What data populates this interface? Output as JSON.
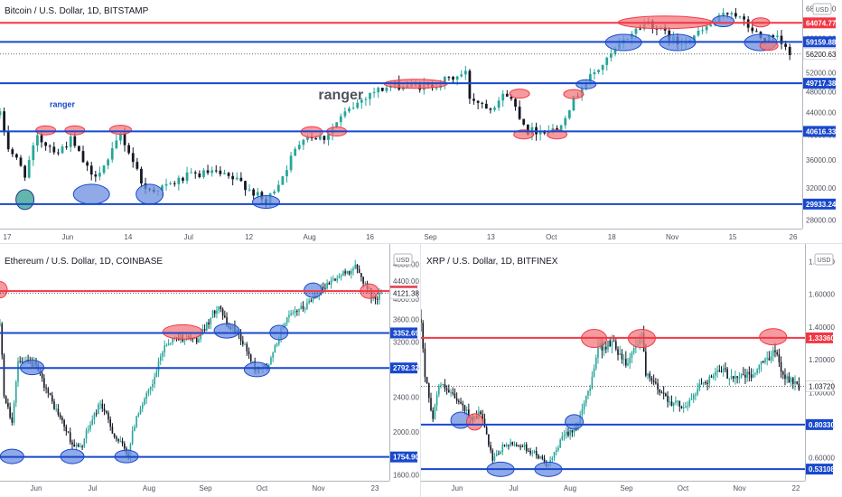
{
  "colors": {
    "up": "#26a69a",
    "down": "#131722",
    "resistance": "#f23645",
    "support": "#1848cc",
    "ellipse_red_fill": "#f2787e",
    "ellipse_blue_fill": "#6b8ee0",
    "ellipse_teal_fill": "#2f9e8f",
    "last_price_bg": "#ffffff"
  },
  "chart_data": [
    {
      "id": "btc",
      "type": "candlestick",
      "title": "Bitcoin / U.S. Dollar, 1D, BITSTAMP",
      "currency_label": "USD",
      "yaxis_scale": "log",
      "ylim": [
        27000,
        70000
      ],
      "y_ticks": [
        68000,
        64000,
        60000,
        56000,
        52000,
        48000,
        44000,
        40000,
        36000,
        32000,
        28000
      ],
      "x_ticks": [
        "17",
        "Jun",
        "14",
        "Jul",
        "12",
        "Aug",
        "16",
        "Sep",
        "13",
        "Oct",
        "18",
        "Nov",
        "15",
        "26"
      ],
      "x_range": [
        "2021-05-17",
        "2021-11-26"
      ],
      "levels": [
        {
          "value": 64074.77,
          "label": "64074.77",
          "kind": "resistance"
        },
        {
          "value": 59159.88,
          "label": "59159.88",
          "kind": "support"
        },
        {
          "value": 49717.38,
          "label": "49717.38",
          "kind": "support"
        },
        {
          "value": 40616.33,
          "label": "40616.33",
          "kind": "support"
        },
        {
          "value": 29933.24,
          "label": "29933.24",
          "kind": "support"
        }
      ],
      "last_price": {
        "value": 56200.63,
        "label": "56200.63"
      },
      "annotations": [
        {
          "text": "ranger",
          "date": "2021-08-07",
          "value": 46500,
          "size": "large"
        },
        {
          "text": "ranger",
          "date": "2021-06-01",
          "value": 45000,
          "size": "small"
        }
      ],
      "highlights": [
        {
          "date": "2021-05-23",
          "value": 30500,
          "rw": 10,
          "rh": 11,
          "kind": "teal"
        },
        {
          "date": "2021-06-08",
          "value": 31200,
          "rw": 20,
          "rh": 11,
          "kind": "support"
        },
        {
          "date": "2021-06-22",
          "value": 31200,
          "rw": 15,
          "rh": 11,
          "kind": "support"
        },
        {
          "date": "2021-07-20",
          "value": 30200,
          "rw": 15,
          "rh": 7,
          "kind": "support"
        },
        {
          "date": "2021-05-28",
          "value": 40800,
          "rw": 11,
          "rh": 5,
          "kind": "resistance"
        },
        {
          "date": "2021-06-04",
          "value": 40800,
          "rw": 11,
          "rh": 5,
          "kind": "resistance"
        },
        {
          "date": "2021-06-15",
          "value": 40900,
          "rw": 12,
          "rh": 5,
          "kind": "resistance"
        },
        {
          "date": "2021-07-31",
          "value": 40500,
          "rw": 12,
          "rh": 6,
          "kind": "resistance"
        },
        {
          "date": "2021-08-06",
          "value": 40600,
          "rw": 11,
          "rh": 5,
          "kind": "resistance"
        },
        {
          "date": "2021-08-25",
          "value": 49600,
          "rw": 35,
          "rh": 5,
          "kind": "resistance"
        },
        {
          "date": "2021-09-19",
          "value": 47600,
          "rw": 11,
          "rh": 5,
          "kind": "resistance"
        },
        {
          "date": "2021-09-20",
          "value": 40100,
          "rw": 11,
          "rh": 5,
          "kind": "resistance"
        },
        {
          "date": "2021-09-28",
          "value": 40100,
          "rw": 11,
          "rh": 5,
          "kind": "resistance"
        },
        {
          "date": "2021-10-02",
          "value": 47500,
          "rw": 11,
          "rh": 5,
          "kind": "resistance"
        },
        {
          "date": "2021-10-05",
          "value": 49500,
          "rw": 11,
          "rh": 5,
          "kind": "support"
        },
        {
          "date": "2021-10-24",
          "value": 64200,
          "rw": 52,
          "rh": 7,
          "kind": "resistance"
        },
        {
          "date": "2021-10-14",
          "value": 59000,
          "rw": 20,
          "rh": 9,
          "kind": "support"
        },
        {
          "date": "2021-10-27",
          "value": 59000,
          "rw": 20,
          "rh": 9,
          "kind": "support"
        },
        {
          "date": "2021-11-07",
          "value": 64500,
          "rw": 12,
          "rh": 6,
          "kind": "support"
        },
        {
          "date": "2021-11-16",
          "value": 59000,
          "rw": 18,
          "rh": 9,
          "kind": "support"
        },
        {
          "date": "2021-11-16",
          "value": 64200,
          "rw": 10,
          "rh": 5,
          "kind": "resistance"
        },
        {
          "date": "2021-11-18",
          "value": 58200,
          "rw": 10,
          "rh": 5,
          "kind": "resistance"
        }
      ],
      "close_path": [
        [
          "2021-05-17",
          43500
        ],
        [
          "2021-05-19",
          38000
        ],
        [
          "2021-05-23",
          34000
        ],
        [
          "2021-05-26",
          39500
        ],
        [
          "2021-05-31",
          37300
        ],
        [
          "2021-06-03",
          39200
        ],
        [
          "2021-06-08",
          33500
        ],
        [
          "2021-06-12",
          35800
        ],
        [
          "2021-06-15",
          40100
        ],
        [
          "2021-06-21",
          31700
        ],
        [
          "2021-06-26",
          32200
        ],
        [
          "2021-07-01",
          33600
        ],
        [
          "2021-07-07",
          34200
        ],
        [
          "2021-07-14",
          32800
        ],
        [
          "2021-07-20",
          30000
        ],
        [
          "2021-07-24",
          33800
        ],
        [
          "2021-07-29",
          39900
        ],
        [
          "2021-08-03",
          39600
        ],
        [
          "2021-08-07",
          43000
        ],
        [
          "2021-08-14",
          47800
        ],
        [
          "2021-08-20",
          49300
        ],
        [
          "2021-08-28",
          49000
        ],
        [
          "2021-09-06",
          51800
        ],
        [
          "2021-09-07",
          46900
        ],
        [
          "2021-09-12",
          45000
        ],
        [
          "2021-09-16",
          47700
        ],
        [
          "2021-09-21",
          40700
        ],
        [
          "2021-09-28",
          41000
        ],
        [
          "2021-10-04",
          49100
        ],
        [
          "2021-10-10",
          54700
        ],
        [
          "2021-10-16",
          61500
        ],
        [
          "2021-10-20",
          64400
        ],
        [
          "2021-10-27",
          58800
        ],
        [
          "2021-11-01",
          61200
        ],
        [
          "2021-11-09",
          67500
        ],
        [
          "2021-11-12",
          64100
        ],
        [
          "2021-11-16",
          60100
        ],
        [
          "2021-11-20",
          59700
        ],
        [
          "2021-11-23",
          56200
        ]
      ]
    },
    {
      "id": "eth",
      "type": "candlestick",
      "title": "Ethereum / U.S. Dollar, 1D, COINBASE",
      "currency_label": "USD",
      "yaxis_scale": "log",
      "ylim": [
        1550,
        4900
      ],
      "y_ticks": [
        4800,
        4400,
        4000,
        3600,
        3200,
        2800,
        2400,
        2000,
        1600
      ],
      "x_ticks": [
        "Jun",
        "Jul",
        "Aug",
        "Sep",
        "Oct",
        "Nov",
        "23"
      ],
      "x_range": [
        "2021-05-17",
        "2021-11-27"
      ],
      "levels": [
        {
          "value": 4170.51,
          "label": "4170.51",
          "kind": "resistance"
        },
        {
          "value": 3352.69,
          "label": "3352.69",
          "kind": "support"
        },
        {
          "value": 2792.32,
          "label": "2792.32",
          "kind": "support"
        },
        {
          "value": 1754.9,
          "label": "1754.90",
          "kind": "support"
        }
      ],
      "last_price": {
        "value": 4121.38,
        "label": "4121.38"
      },
      "highlights": [
        {
          "date": "2021-05-17",
          "value": 4200,
          "rw": 8,
          "rh": 9,
          "kind": "resistance"
        },
        {
          "date": "2021-06-02",
          "value": 2800,
          "rw": 13,
          "rh": 8,
          "kind": "support"
        },
        {
          "date": "2021-05-23",
          "value": 1760,
          "rw": 13,
          "rh": 8,
          "kind": "support"
        },
        {
          "date": "2021-06-22",
          "value": 1760,
          "rw": 13,
          "rh": 8,
          "kind": "support"
        },
        {
          "date": "2021-07-19",
          "value": 1760,
          "rw": 13,
          "rh": 7,
          "kind": "support"
        },
        {
          "date": "2021-08-16",
          "value": 3370,
          "rw": 22,
          "rh": 8,
          "kind": "resistance"
        },
        {
          "date": "2021-09-07",
          "value": 3390,
          "rw": 14,
          "rh": 8,
          "kind": "support"
        },
        {
          "date": "2021-09-22",
          "value": 2770,
          "rw": 14,
          "rh": 8,
          "kind": "support"
        },
        {
          "date": "2021-10-03",
          "value": 3360,
          "rw": 10,
          "rh": 8,
          "kind": "support"
        },
        {
          "date": "2021-10-20",
          "value": 4190,
          "rw": 10,
          "rh": 8,
          "kind": "support"
        },
        {
          "date": "2021-11-17",
          "value": 4170,
          "rw": 10,
          "rh": 8,
          "kind": "resistance"
        }
      ],
      "close_path": [
        [
          "2021-05-17",
          3500
        ],
        [
          "2021-05-19",
          2450
        ],
        [
          "2021-05-23",
          2100
        ],
        [
          "2021-05-26",
          2880
        ],
        [
          "2021-06-03",
          2850
        ],
        [
          "2021-06-12",
          2330
        ],
        [
          "2021-06-22",
          1880
        ],
        [
          "2021-06-26",
          1830
        ],
        [
          "2021-07-06",
          2330
        ],
        [
          "2021-07-13",
          1960
        ],
        [
          "2021-07-20",
          1780
        ],
        [
          "2021-07-24",
          2180
        ],
        [
          "2021-08-01",
          2550
        ],
        [
          "2021-08-07",
          3150
        ],
        [
          "2021-08-13",
          3280
        ],
        [
          "2021-08-24",
          3230
        ],
        [
          "2021-09-03",
          3900
        ],
        [
          "2021-09-07",
          3480
        ],
        [
          "2021-09-12",
          3400
        ],
        [
          "2021-09-21",
          2780
        ],
        [
          "2021-09-28",
          2820
        ],
        [
          "2021-10-06",
          3580
        ],
        [
          "2021-10-16",
          3850
        ],
        [
          "2021-10-21",
          4100
        ],
        [
          "2021-10-29",
          4400
        ],
        [
          "2021-11-10",
          4720
        ],
        [
          "2021-11-16",
          4250
        ],
        [
          "2021-11-19",
          4000
        ],
        [
          "2021-11-23",
          4121
        ]
      ]
    },
    {
      "id": "xrp",
      "type": "candlestick",
      "title": "XRP / U.S. Dollar, 1D, BITFINEX",
      "currency_label": "USD",
      "yaxis_scale": "linear",
      "ylim": [
        0.46,
        1.88
      ],
      "y_ticks": [
        1.8,
        1.6,
        1.4,
        1.2,
        1.0,
        0.8,
        0.6
      ],
      "y_tick_labels": [
        "1.80000",
        "1.60000",
        "1.40000",
        "1.20000",
        "1.00000",
        "0.80000",
        "0.60000"
      ],
      "x_ticks": [
        "Jun",
        "Jul",
        "Aug",
        "Sep",
        "Oct",
        "Nov",
        "22"
      ],
      "x_range": [
        "2021-05-17",
        "2021-11-26"
      ],
      "levels": [
        {
          "value": 1.3336,
          "label": "1.33360",
          "kind": "resistance"
        },
        {
          "value": 0.8033,
          "label": "0.80330",
          "kind": "support"
        },
        {
          "value": 0.53108,
          "label": "0.53108",
          "kind": "support"
        }
      ],
      "last_price": {
        "value": 1.0372,
        "label": "1.03720"
      },
      "highlights": [
        {
          "date": "2021-06-06",
          "value": 0.83,
          "rw": 11,
          "rh": 9,
          "kind": "support"
        },
        {
          "date": "2021-06-13",
          "value": 0.82,
          "rw": 9,
          "rh": 9,
          "kind": "resistance"
        },
        {
          "date": "2021-06-26",
          "value": 0.53,
          "rw": 15,
          "rh": 8,
          "kind": "support"
        },
        {
          "date": "2021-07-20",
          "value": 0.53,
          "rw": 15,
          "rh": 8,
          "kind": "support"
        },
        {
          "date": "2021-08-02",
          "value": 0.82,
          "rw": 10,
          "rh": 8,
          "kind": "support"
        },
        {
          "date": "2021-08-12",
          "value": 1.33,
          "rw": 14,
          "rh": 10,
          "kind": "resistance"
        },
        {
          "date": "2021-09-05",
          "value": 1.33,
          "rw": 15,
          "rh": 10,
          "kind": "resistance"
        },
        {
          "date": "2021-11-10",
          "value": 1.34,
          "rw": 15,
          "rh": 9,
          "kind": "resistance"
        }
      ],
      "close_path": [
        [
          "2021-05-17",
          1.45
        ],
        [
          "2021-05-19",
          1.1
        ],
        [
          "2021-05-23",
          0.85
        ],
        [
          "2021-05-26",
          1.05
        ],
        [
          "2021-06-04",
          0.95
        ],
        [
          "2021-06-12",
          0.84
        ],
        [
          "2021-06-16",
          0.88
        ],
        [
          "2021-06-22",
          0.58
        ],
        [
          "2021-06-28",
          0.68
        ],
        [
          "2021-07-06",
          0.68
        ],
        [
          "2021-07-14",
          0.62
        ],
        [
          "2021-07-20",
          0.55
        ],
        [
          "2021-07-28",
          0.74
        ],
        [
          "2021-08-04",
          0.8
        ],
        [
          "2021-08-10",
          1.05
        ],
        [
          "2021-08-14",
          1.28
        ],
        [
          "2021-08-22",
          1.3
        ],
        [
          "2021-08-28",
          1.18
        ],
        [
          "2021-09-05",
          1.36
        ],
        [
          "2021-09-07",
          1.1
        ],
        [
          "2021-09-21",
          0.93
        ],
        [
          "2021-09-28",
          0.92
        ],
        [
          "2021-10-05",
          1.06
        ],
        [
          "2021-10-15",
          1.13
        ],
        [
          "2021-10-20",
          1.1
        ],
        [
          "2021-10-30",
          1.1
        ],
        [
          "2021-11-05",
          1.18
        ],
        [
          "2021-11-10",
          1.26
        ],
        [
          "2021-11-16",
          1.1
        ],
        [
          "2021-11-19",
          1.08
        ],
        [
          "2021-11-23",
          1.037
        ]
      ]
    }
  ]
}
